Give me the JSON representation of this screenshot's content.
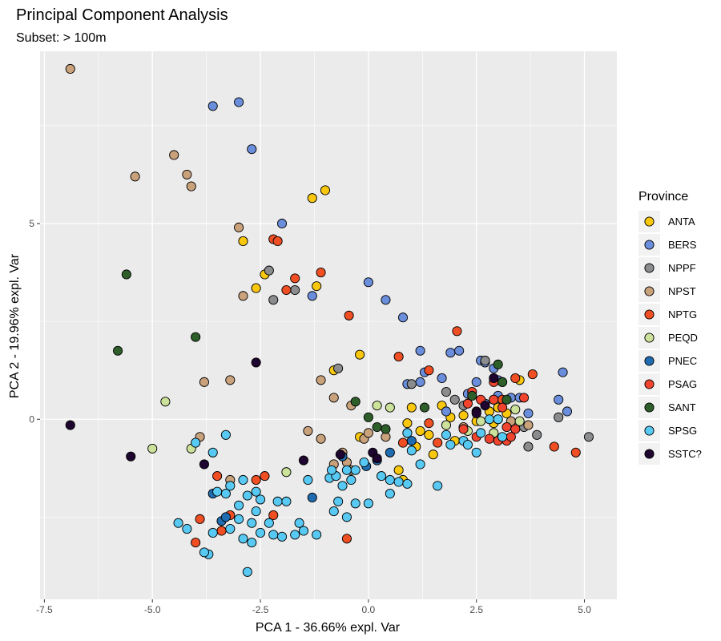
{
  "chart_data": {
    "type": "scatter",
    "title": "Principal Component Analysis",
    "subtitle": "Subset: > 100m",
    "xlabel": "PCA 1 - 36.66% expl. Var",
    "ylabel": "PCA 2 - 19.96% expl. Var",
    "xlim": [
      -7.6,
      5.75
    ],
    "ylim": [
      -4.6,
      9.4
    ],
    "xticks": [
      -7.5,
      -5.0,
      -2.5,
      0.0,
      2.5,
      5.0
    ],
    "xtick_labels": [
      "-7.5",
      "-5.0",
      "-2.5",
      "0.0",
      "2.5",
      "5.0"
    ],
    "yticks": [
      0,
      5
    ],
    "ytick_labels": [
      "0",
      "5"
    ],
    "grid": true,
    "legend_position": "right",
    "legend_title": "Province",
    "series": [
      {
        "name": "ANTA",
        "color": "#F9C80E",
        "points": [
          [
            -1.0,
            5.85
          ],
          [
            -1.3,
            5.65
          ],
          [
            -2.9,
            4.55
          ],
          [
            -2.4,
            3.7
          ],
          [
            -2.6,
            3.35
          ],
          [
            -1.2,
            3.4
          ],
          [
            -0.8,
            1.25
          ],
          [
            -0.2,
            1.65
          ],
          [
            1.0,
            0.3
          ],
          [
            1.7,
            0.35
          ],
          [
            1.9,
            0.05
          ],
          [
            2.2,
            0.1
          ],
          [
            2.5,
            -0.05
          ],
          [
            2.8,
            0.2
          ],
          [
            3.0,
            0.3
          ],
          [
            3.2,
            0.15
          ],
          [
            3.5,
            1.0
          ],
          [
            0.9,
            -0.1
          ],
          [
            1.2,
            -0.3
          ],
          [
            1.4,
            -0.4
          ],
          [
            2.0,
            -0.55
          ],
          [
            1.1,
            -0.7
          ],
          [
            1.5,
            -0.9
          ],
          [
            0.7,
            -1.3
          ],
          [
            0.8,
            -1.55
          ],
          [
            -0.2,
            -0.45
          ],
          [
            2.9,
            -0.1
          ]
        ]
      },
      {
        "name": "BERS",
        "color": "#6A8EDB",
        "points": [
          [
            -3.6,
            8.0
          ],
          [
            -3.0,
            8.1
          ],
          [
            -2.7,
            6.9
          ],
          [
            -2.0,
            5.0
          ],
          [
            -1.3,
            3.15
          ],
          [
            0.0,
            3.5
          ],
          [
            0.4,
            3.05
          ],
          [
            0.8,
            2.6
          ],
          [
            1.2,
            1.75
          ],
          [
            1.9,
            1.7
          ],
          [
            2.1,
            1.75
          ],
          [
            1.3,
            1.2
          ],
          [
            1.7,
            1.05
          ],
          [
            2.6,
            1.5
          ],
          [
            2.7,
            1.45
          ],
          [
            2.9,
            1.3
          ],
          [
            3.0,
            1.0
          ],
          [
            3.3,
            0.55
          ],
          [
            3.5,
            0.55
          ],
          [
            3.7,
            0.15
          ],
          [
            4.4,
            0.5
          ],
          [
            4.5,
            1.2
          ],
          [
            4.6,
            0.2
          ],
          [
            2.5,
            0.95
          ],
          [
            1.2,
            0.95
          ],
          [
            0.9,
            0.9
          ],
          [
            1.8,
            0.2
          ],
          [
            2.3,
            0.65
          ],
          [
            2.7,
            0.4
          ],
          [
            3.0,
            0.6
          ]
        ]
      },
      {
        "name": "NPPF",
        "color": "#8A8C8E",
        "points": [
          [
            -2.3,
            3.8
          ],
          [
            -2.2,
            3.05
          ],
          [
            -1.7,
            3.3
          ],
          [
            -0.7,
            1.3
          ],
          [
            1.0,
            0.9
          ],
          [
            1.8,
            0.7
          ],
          [
            2.2,
            0.35
          ],
          [
            2.7,
            1.5
          ],
          [
            3.7,
            -0.7
          ],
          [
            3.9,
            -0.4
          ],
          [
            4.4,
            0.05
          ],
          [
            5.1,
            -0.45
          ],
          [
            2.9,
            0.5
          ],
          [
            3.6,
            -0.2
          ],
          [
            3.0,
            0.0
          ],
          [
            2.0,
            0.5
          ]
        ]
      },
      {
        "name": "NPST",
        "color": "#C9A27C",
        "points": [
          [
            -6.9,
            8.95
          ],
          [
            -5.4,
            6.2
          ],
          [
            -4.5,
            6.75
          ],
          [
            -4.2,
            6.25
          ],
          [
            -4.1,
            5.95
          ],
          [
            -3.0,
            4.9
          ],
          [
            -2.9,
            3.15
          ],
          [
            -3.2,
            1.0
          ],
          [
            -3.8,
            0.95
          ],
          [
            -1.1,
            1.0
          ],
          [
            -0.8,
            0.55
          ],
          [
            -0.4,
            0.35
          ],
          [
            -1.4,
            -0.3
          ],
          [
            -1.1,
            -0.5
          ],
          [
            -0.6,
            -0.85
          ],
          [
            -0.5,
            -1.1
          ],
          [
            -0.8,
            -1.15
          ],
          [
            -0.4,
            -1.3
          ],
          [
            -3.9,
            -0.45
          ],
          [
            -3.2,
            -1.55
          ],
          [
            -0.1,
            -0.5
          ],
          [
            0.0,
            -0.35
          ],
          [
            0.4,
            -0.45
          ],
          [
            3.3,
            -0.05
          ],
          [
            3.7,
            -0.15
          ],
          [
            2.2,
            -0.2
          ]
        ]
      },
      {
        "name": "NPTG",
        "color": "#F04E23",
        "points": [
          [
            -2.2,
            4.6
          ],
          [
            -2.1,
            4.55
          ],
          [
            -1.1,
            3.75
          ],
          [
            -1.7,
            3.6
          ],
          [
            -1.9,
            3.3
          ],
          [
            -0.45,
            2.65
          ],
          [
            2.05,
            2.25
          ],
          [
            1.4,
            1.25
          ],
          [
            0.7,
            1.6
          ],
          [
            3.4,
            1.05
          ],
          [
            3.8,
            1.15
          ],
          [
            0.9,
            -0.35
          ],
          [
            0.8,
            -0.6
          ],
          [
            1.4,
            -0.1
          ],
          [
            1.6,
            -0.6
          ],
          [
            -2.6,
            -1.55
          ],
          [
            -2.4,
            -1.45
          ],
          [
            -3.5,
            -1.45
          ],
          [
            -2.2,
            -2.45
          ],
          [
            -3.9,
            -2.55
          ],
          [
            -3.2,
            -2.45
          ],
          [
            -3.4,
            -2.85
          ],
          [
            -4.0,
            -3.15
          ],
          [
            -0.5,
            -3.05
          ],
          [
            4.3,
            -0.7
          ],
          [
            4.8,
            -0.85
          ],
          [
            3.1,
            0.5
          ]
        ]
      },
      {
        "name": "PEQD",
        "color": "#CCE29A",
        "points": [
          [
            -4.7,
            0.45
          ],
          [
            -5.0,
            -0.75
          ],
          [
            -4.1,
            -0.75
          ],
          [
            -1.9,
            -1.35
          ],
          [
            1.8,
            -0.15
          ],
          [
            2.3,
            -0.3
          ],
          [
            2.9,
            -0.35
          ],
          [
            3.5,
            -0.05
          ],
          [
            0.2,
            0.35
          ],
          [
            0.5,
            0.3
          ],
          [
            2.6,
            -0.05
          ],
          [
            3.4,
            0.25
          ]
        ]
      },
      {
        "name": "PNEC",
        "color": "#1F6CB0",
        "points": [
          [
            -3.6,
            -1.9
          ],
          [
            -3.4,
            -2.6
          ],
          [
            -1.3,
            -2.0
          ],
          [
            -3.3,
            -2.5
          ],
          [
            -0.6,
            -0.95
          ],
          [
            0.5,
            -0.85
          ],
          [
            1.0,
            -0.55
          ],
          [
            0.2,
            -1.05
          ],
          [
            -0.05,
            -1.2
          ]
        ]
      },
      {
        "name": "PSAG",
        "color": "#F0442F",
        "points": [
          [
            2.4,
            0.7
          ],
          [
            2.6,
            0.5
          ],
          [
            2.9,
            0.5
          ],
          [
            3.1,
            0.3
          ],
          [
            3.2,
            -0.2
          ],
          [
            3.4,
            -0.25
          ],
          [
            2.8,
            -0.5
          ],
          [
            3.0,
            -0.55
          ],
          [
            3.2,
            -0.55
          ],
          [
            2.5,
            -0.45
          ],
          [
            2.2,
            -0.25
          ],
          [
            2.9,
            0.95
          ],
          [
            3.1,
            0.95
          ],
          [
            3.6,
            0.55
          ],
          [
            3.3,
            -0.45
          ],
          [
            2.3,
            0.4
          ]
        ]
      },
      {
        "name": "SANT",
        "color": "#2E5E2A",
        "points": [
          [
            -5.6,
            3.7
          ],
          [
            -5.8,
            1.75
          ],
          [
            -4.0,
            2.1
          ],
          [
            -0.3,
            0.45
          ],
          [
            0.0,
            0.05
          ],
          [
            0.2,
            -0.2
          ],
          [
            0.4,
            -0.25
          ],
          [
            1.3,
            0.3
          ],
          [
            3.1,
            0.95
          ],
          [
            3.2,
            0.5
          ],
          [
            3.0,
            1.4
          ],
          [
            2.4,
            0.6
          ]
        ]
      },
      {
        "name": "SPSG",
        "color": "#58C9F2",
        "points": [
          [
            -4.0,
            -0.6
          ],
          [
            -3.6,
            -0.85
          ],
          [
            -3.3,
            -0.4
          ],
          [
            -3.5,
            -1.85
          ],
          [
            -3.2,
            -1.7
          ],
          [
            -2.9,
            -1.55
          ],
          [
            -2.8,
            -1.95
          ],
          [
            -3.0,
            -2.2
          ],
          [
            -2.6,
            -1.85
          ],
          [
            -2.5,
            -2.05
          ],
          [
            -2.6,
            -2.35
          ],
          [
            -2.3,
            -2.65
          ],
          [
            -2.5,
            -2.9
          ],
          [
            -2.2,
            -2.95
          ],
          [
            -2.7,
            -3.15
          ],
          [
            -2.9,
            -3.05
          ],
          [
            -3.2,
            -2.8
          ],
          [
            -3.6,
            -2.9
          ],
          [
            -3.7,
            -3.45
          ],
          [
            -3.8,
            -3.4
          ],
          [
            -4.4,
            -2.65
          ],
          [
            -4.2,
            -2.8
          ],
          [
            -3.0,
            -2.55
          ],
          [
            -2.1,
            -2.1
          ],
          [
            -1.9,
            -2.1
          ],
          [
            -2.0,
            -3.0
          ],
          [
            -1.6,
            -2.65
          ],
          [
            -1.5,
            -2.85
          ],
          [
            -1.7,
            -2.95
          ],
          [
            -1.2,
            -2.95
          ],
          [
            -0.8,
            -2.35
          ],
          [
            -0.5,
            -2.5
          ],
          [
            -0.3,
            -2.15
          ],
          [
            0.0,
            -2.15
          ],
          [
            -0.7,
            -2.1
          ],
          [
            -0.6,
            -1.7
          ],
          [
            -0.4,
            -1.55
          ],
          [
            -0.5,
            -1.3
          ],
          [
            -0.3,
            -1.3
          ],
          [
            -0.1,
            -1.1
          ],
          [
            -0.9,
            -1.5
          ],
          [
            -0.75,
            -1.45
          ],
          [
            -0.85,
            -1.3
          ],
          [
            0.3,
            -1.45
          ],
          [
            0.5,
            -1.55
          ],
          [
            0.7,
            -1.6
          ],
          [
            0.9,
            -1.65
          ],
          [
            0.5,
            -1.9
          ],
          [
            1.2,
            -1.15
          ],
          [
            1.6,
            -1.7
          ],
          [
            1.8,
            -0.4
          ],
          [
            1.9,
            -0.65
          ],
          [
            2.2,
            -0.55
          ],
          [
            2.3,
            -0.65
          ],
          [
            2.6,
            -0.35
          ],
          [
            2.8,
            0.0
          ],
          [
            3.0,
            0.0
          ],
          [
            3.1,
            -0.45
          ],
          [
            2.5,
            -0.85
          ],
          [
            -2.8,
            -3.9
          ],
          [
            0.9,
            -0.35
          ],
          [
            1.0,
            -0.8
          ],
          [
            -2.7,
            -2.65
          ],
          [
            -3.3,
            -1.9
          ],
          [
            -1.4,
            -1.55
          ]
        ]
      },
      {
        "name": "SSTC?",
        "color": "#1E0530",
        "points": [
          [
            -6.9,
            -0.15
          ],
          [
            -5.5,
            -0.95
          ],
          [
            -2.6,
            1.45
          ],
          [
            -3.8,
            -1.15
          ],
          [
            -1.5,
            -1.05
          ],
          [
            -0.65,
            -0.9
          ],
          [
            0.1,
            -0.85
          ],
          [
            0.2,
            -1.0
          ],
          [
            2.9,
            1.05
          ],
          [
            2.5,
            0.2
          ],
          [
            2.5,
            0.15
          ],
          [
            2.7,
            0.35
          ]
        ]
      }
    ]
  }
}
